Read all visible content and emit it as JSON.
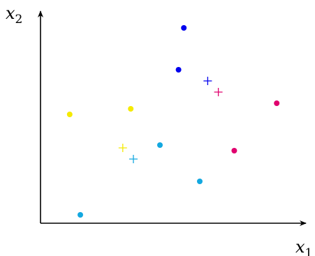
{
  "chart_data": {
    "type": "scatter",
    "xlabel": {
      "base": "x",
      "sub": "1"
    },
    "ylabel": {
      "base": "x",
      "sub": "2"
    },
    "xlim": [
      0,
      10
    ],
    "ylim": [
      0,
      7.6
    ],
    "grid": false,
    "colors": {
      "blue": "#0000ee",
      "magenta": "#e0006e",
      "yellow": "#f5ea00",
      "cyan": "#13a8e0",
      "axis": "#000000"
    },
    "series": [
      {
        "color_key": "blue",
        "points": [
          {
            "x": 5.4,
            "y": 7.0
          },
          {
            "x": 5.2,
            "y": 5.5
          }
        ],
        "centroid": {
          "x": 6.3,
          "y": 5.1
        }
      },
      {
        "color_key": "magenta",
        "points": [
          {
            "x": 8.9,
            "y": 4.3
          },
          {
            "x": 7.3,
            "y": 2.6
          }
        ],
        "centroid": {
          "x": 6.7,
          "y": 4.7
        }
      },
      {
        "color_key": "yellow",
        "points": [
          {
            "x": 1.1,
            "y": 3.9
          },
          {
            "x": 3.4,
            "y": 4.1
          }
        ],
        "centroid": {
          "x": 3.1,
          "y": 2.7
        }
      },
      {
        "color_key": "cyan",
        "points": [
          {
            "x": 4.5,
            "y": 2.8
          },
          {
            "x": 6.0,
            "y": 1.5
          },
          {
            "x": 1.5,
            "y": 0.3
          }
        ],
        "centroid": {
          "x": 3.5,
          "y": 2.3
        }
      }
    ]
  }
}
